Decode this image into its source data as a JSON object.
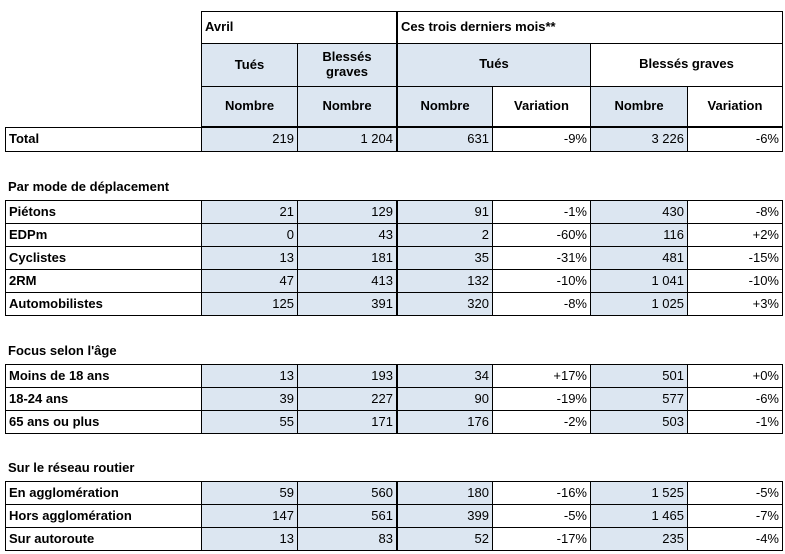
{
  "header": {
    "period_a": "Avril",
    "period_b": "Ces trois derniers mois**",
    "killed": "Tués",
    "injured_two_lines": [
      "Blessés",
      "graves"
    ],
    "injured": "Blessés graves",
    "number": "Nombre",
    "variation": "Variation"
  },
  "total": {
    "label": "Total",
    "cells": [
      "219",
      "1 204",
      "631",
      "-9%",
      "3 226",
      "-6%"
    ]
  },
  "sections": [
    {
      "title": "Par mode de déplacement",
      "rows": [
        {
          "label": "Piétons",
          "cells": [
            "21",
            "129",
            "91",
            "-1%",
            "430",
            "-8%"
          ]
        },
        {
          "label": "EDPm",
          "cells": [
            "0",
            "43",
            "2",
            "-60%",
            "116",
            "+2%"
          ]
        },
        {
          "label": "Cyclistes",
          "cells": [
            "13",
            "181",
            "35",
            "-31%",
            "481",
            "-15%"
          ]
        },
        {
          "label": "2RM",
          "cells": [
            "47",
            "413",
            "132",
            "-10%",
            "1 041",
            "-10%"
          ]
        },
        {
          "label": "Automobilistes",
          "cells": [
            "125",
            "391",
            "320",
            "-8%",
            "1 025",
            "+3%"
          ]
        }
      ]
    },
    {
      "title": "Focus selon l'âge",
      "rows": [
        {
          "label": "Moins de 18 ans",
          "cells": [
            "13",
            "193",
            "34",
            "+17%",
            "501",
            "+0%"
          ]
        },
        {
          "label": "18-24 ans",
          "cells": [
            "39",
            "227",
            "90",
            "-19%",
            "577",
            "-6%"
          ]
        },
        {
          "label": "65 ans ou plus",
          "cells": [
            "55",
            "171",
            "176",
            "-2%",
            "503",
            "-1%"
          ]
        }
      ]
    },
    {
      "title": "Sur le réseau routier",
      "rows": [
        {
          "label": "En agglomération",
          "cells": [
            "59",
            "560",
            "180",
            "-16%",
            "1 525",
            "-5%"
          ]
        },
        {
          "label": "Hors agglomération",
          "cells": [
            "147",
            "561",
            "399",
            "-5%",
            "1 465",
            "-7%"
          ]
        },
        {
          "label": "Sur autoroute",
          "cells": [
            "13",
            "83",
            "52",
            "-17%",
            "235",
            "-4%"
          ]
        }
      ]
    }
  ]
}
